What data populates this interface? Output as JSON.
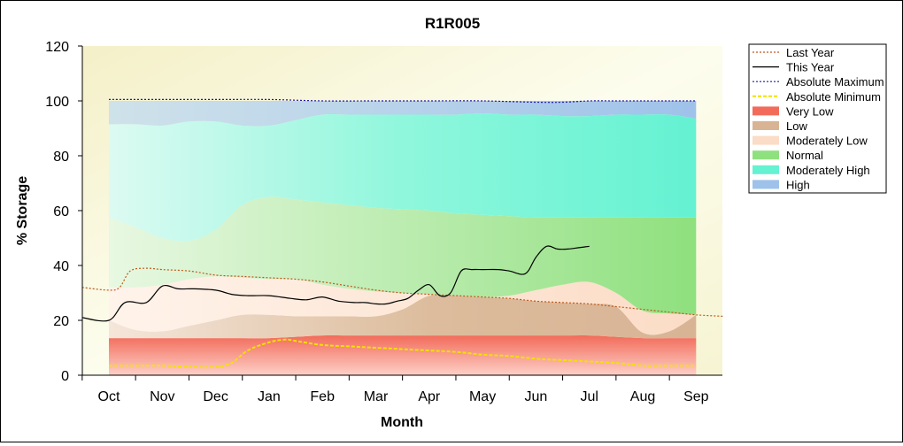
{
  "chart_data": {
    "type": "area",
    "title": "R1R005",
    "xlabel": "Month",
    "ylabel": "% Storage",
    "ylim": [
      0,
      120
    ],
    "yticks": [
      0,
      20,
      40,
      60,
      80,
      100,
      120
    ],
    "categories": [
      "Oct",
      "Nov",
      "Dec",
      "Jan",
      "Feb",
      "Mar",
      "Apr",
      "May",
      "Jun",
      "Jul",
      "Aug",
      "Sep"
    ],
    "grid": false,
    "legend_placement": "right",
    "bands_x": [
      0,
      0.5,
      1,
      1.5,
      2,
      2.5,
      3,
      3.5,
      4,
      4.5,
      5,
      5.5,
      6,
      6.5,
      7,
      7.5,
      8,
      8.5,
      9,
      9.5,
      10,
      10.5,
      11
    ],
    "band_boundaries": {
      "very_low_top": [
        13.5,
        13.5,
        13.5,
        13.5,
        13.5,
        13.5,
        13.5,
        14,
        14.5,
        14.5,
        14.5,
        14.5,
        14.5,
        14.5,
        14.5,
        14.5,
        14.5,
        14.5,
        14.5,
        14,
        13.5,
        13.5,
        13.5
      ],
      "low_top": [
        20,
        16.5,
        16,
        18,
        20,
        22,
        22,
        21.5,
        21.5,
        21.5,
        21.5,
        24,
        29,
        29,
        28.5,
        28,
        27,
        26.5,
        26,
        25,
        15.5,
        16,
        22
      ],
      "moderately_low_top": [
        32,
        32,
        33,
        35,
        36,
        35.5,
        35,
        35,
        33,
        31.5,
        30.5,
        30,
        29.5,
        29,
        28.5,
        29,
        31,
        33,
        34,
        30,
        23.5,
        22.5,
        22
      ],
      "normal_top": [
        57.5,
        54,
        50,
        49,
        53,
        62,
        65,
        64,
        63,
        62,
        61,
        60.5,
        60,
        59,
        58.5,
        58,
        57.5,
        57.5,
        57.5,
        57.5,
        57.5,
        57.5,
        57.5
      ],
      "moderately_high_top": [
        91.5,
        91.5,
        91,
        92.5,
        92.5,
        91,
        91,
        93,
        95,
        95,
        95,
        95,
        95,
        95,
        95.5,
        95,
        95,
        94.5,
        94.5,
        95,
        95,
        95,
        93.5
      ],
      "high_top": [
        100,
        100,
        100,
        100,
        100,
        100,
        100,
        100,
        100,
        100,
        100,
        100,
        100,
        100,
        100,
        100,
        100,
        100,
        100,
        100,
        100,
        100,
        100
      ]
    },
    "series": [
      {
        "name": "Last Year",
        "x": [
          -0.5,
          0,
          0.2,
          0.4,
          0.7,
          1,
          1.5,
          2,
          2.5,
          3,
          3.5,
          4,
          4.5,
          5,
          5.5,
          6,
          6.5,
          7,
          7.5,
          8,
          8.5,
          9,
          9.5,
          10,
          10.5,
          11,
          11.5
        ],
        "values": [
          32,
          31,
          32,
          38,
          39,
          38.5,
          38,
          36.5,
          36,
          35.5,
          35,
          34,
          32.5,
          31,
          30,
          29.5,
          29,
          28.5,
          28,
          27,
          26.5,
          26,
          25,
          24,
          23,
          22,
          21.5
        ]
      },
      {
        "name": "This Year",
        "x": [
          -0.5,
          0,
          0.3,
          0.7,
          1,
          1.3,
          1.6,
          2,
          2.3,
          2.6,
          3,
          3.4,
          3.7,
          4,
          4.3,
          4.6,
          4.8,
          5,
          5.2,
          5.4,
          5.6,
          5.8,
          6,
          6.2,
          6.4,
          6.6,
          6.8,
          7,
          7.3,
          7.5,
          7.8,
          8,
          8.2,
          8.4,
          8.6,
          8.8,
          9
        ],
        "values": [
          21,
          20,
          26.5,
          26.5,
          32.5,
          31.5,
          31.5,
          31,
          29.5,
          29,
          29,
          28,
          27.5,
          28.5,
          27,
          26.5,
          26.5,
          26,
          26,
          27,
          28,
          31,
          33,
          29,
          30,
          38,
          38.5,
          38.5,
          38.5,
          38,
          37,
          43,
          47,
          46,
          46,
          46.5,
          47
        ]
      },
      {
        "name": "Absolute Maximum",
        "x": [
          0,
          1,
          2,
          3,
          4,
          5,
          6,
          7,
          8,
          8.5,
          9,
          9.5,
          10,
          10.5,
          11
        ],
        "values": [
          100.5,
          100.5,
          100.5,
          100.5,
          100,
          100,
          100,
          100,
          99.5,
          99.5,
          100,
          100,
          100,
          100,
          100
        ]
      },
      {
        "name": "Absolute Minimum",
        "x": [
          0,
          0.5,
          1,
          1.5,
          2,
          2.3,
          2.6,
          3,
          3.3,
          3.5,
          4,
          4.5,
          5,
          5.5,
          6,
          6.5,
          7,
          7.5,
          8,
          8.5,
          9,
          9.5,
          10,
          10.5,
          11
        ],
        "values": [
          3.5,
          3.5,
          3.5,
          3,
          3,
          4.5,
          9,
          12,
          13,
          12.5,
          11,
          10.5,
          10,
          9.5,
          9,
          8.5,
          7.5,
          7,
          6,
          5.5,
          5,
          4.5,
          3.5,
          3.5,
          3.5
        ]
      }
    ],
    "legend": [
      {
        "label": "Last Year",
        "kind": "line",
        "color": "#c0581c",
        "dash": "2,2"
      },
      {
        "label": "This Year",
        "kind": "line",
        "color": "#000000",
        "dash": ""
      },
      {
        "label": "Absolute Maximum",
        "kind": "line",
        "color": "#1a1aaa",
        "dash": "2,2"
      },
      {
        "label": "Absolute Minimum",
        "kind": "line",
        "color": "#f2e200",
        "dash": "4,2"
      },
      {
        "label": "Very Low",
        "kind": "band",
        "color": "#f26b5a"
      },
      {
        "label": "Low",
        "kind": "band",
        "color": "#d8b495"
      },
      {
        "label": "Moderately Low",
        "kind": "band",
        "color": "#fbdcc6"
      },
      {
        "label": "Normal",
        "kind": "band",
        "color": "#8fe07e"
      },
      {
        "label": "Moderately High",
        "kind": "band",
        "color": "#64f2d2"
      },
      {
        "label": "High",
        "kind": "band",
        "color": "#9fc2ea"
      }
    ]
  }
}
